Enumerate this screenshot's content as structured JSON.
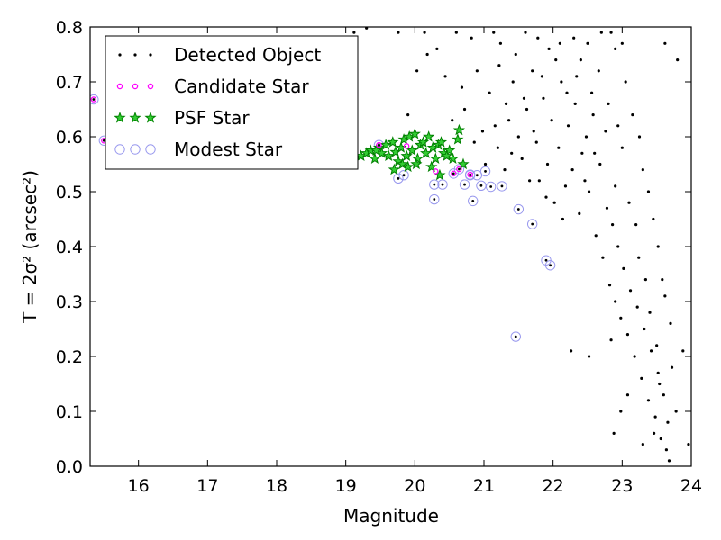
{
  "chart_data": {
    "type": "scatter",
    "xlabel": "Magnitude",
    "ylabel": "T = 2σ² (arcsec²)",
    "xlim": [
      15.3,
      24.0
    ],
    "ylim": [
      0.0,
      0.8
    ],
    "xticks": [
      16,
      17,
      18,
      19,
      20,
      21,
      22,
      23,
      24
    ],
    "yticks": [
      0.0,
      0.1,
      0.2,
      0.3,
      0.4,
      0.5,
      0.6,
      0.7,
      0.8
    ],
    "legend_position": "top-left",
    "grid": false,
    "series": [
      {
        "name": "Detected Object",
        "color": "#000000",
        "marker": "dot",
        "points": [
          [
            19.12,
            0.79
          ],
          [
            19.3,
            0.798
          ],
          [
            19.76,
            0.79
          ],
          [
            19.9,
            0.64
          ],
          [
            20.03,
            0.72
          ],
          [
            20.14,
            0.79
          ],
          [
            20.18,
            0.75
          ],
          [
            20.32,
            0.76
          ],
          [
            20.44,
            0.71
          ],
          [
            20.6,
            0.79
          ],
          [
            20.68,
            0.69
          ],
          [
            20.82,
            0.78
          ],
          [
            20.9,
            0.72
          ],
          [
            20.98,
            0.61
          ],
          [
            21.08,
            0.68
          ],
          [
            21.16,
            0.62
          ],
          [
            21.22,
            0.73
          ],
          [
            21.32,
            0.66
          ],
          [
            21.42,
            0.7
          ],
          [
            21.5,
            0.6
          ],
          [
            21.55,
            0.56
          ],
          [
            21.62,
            0.65
          ],
          [
            21.7,
            0.72
          ],
          [
            21.76,
            0.59
          ],
          [
            21.8,
            0.52
          ],
          [
            21.86,
            0.67
          ],
          [
            21.92,
            0.55
          ],
          [
            21.98,
            0.63
          ],
          [
            22.02,
            0.48
          ],
          [
            22.08,
            0.58
          ],
          [
            22.12,
            0.7
          ],
          [
            22.18,
            0.51
          ],
          [
            22.22,
            0.62
          ],
          [
            22.28,
            0.54
          ],
          [
            22.32,
            0.66
          ],
          [
            22.38,
            0.46
          ],
          [
            22.42,
            0.57
          ],
          [
            22.48,
            0.6
          ],
          [
            22.52,
            0.5
          ],
          [
            22.58,
            0.64
          ],
          [
            22.62,
            0.42
          ],
          [
            22.68,
            0.55
          ],
          [
            22.72,
            0.38
          ],
          [
            22.78,
            0.47
          ],
          [
            22.82,
            0.33
          ],
          [
            22.86,
            0.44
          ],
          [
            22.9,
            0.3
          ],
          [
            22.94,
            0.4
          ],
          [
            22.98,
            0.27
          ],
          [
            23.02,
            0.36
          ],
          [
            23.08,
            0.24
          ],
          [
            23.12,
            0.32
          ],
          [
            23.18,
            0.2
          ],
          [
            23.22,
            0.29
          ],
          [
            23.28,
            0.16
          ],
          [
            23.32,
            0.25
          ],
          [
            23.38,
            0.12
          ],
          [
            23.42,
            0.21
          ],
          [
            23.48,
            0.09
          ],
          [
            23.52,
            0.17
          ],
          [
            23.56,
            0.05
          ],
          [
            23.6,
            0.13
          ],
          [
            23.64,
            0.03
          ],
          [
            23.62,
            0.77
          ],
          [
            23.8,
            0.74
          ],
          [
            23.88,
            0.21
          ],
          [
            23.96,
            0.04
          ],
          [
            21.14,
            0.79
          ],
          [
            21.6,
            0.79
          ],
          [
            22.1,
            0.77
          ],
          [
            22.4,
            0.74
          ],
          [
            22.7,
            0.79
          ],
          [
            22.9,
            0.76
          ],
          [
            23.05,
            0.7
          ],
          [
            23.15,
            0.64
          ],
          [
            23.25,
            0.6
          ],
          [
            23.3,
            0.54
          ],
          [
            23.38,
            0.5
          ],
          [
            23.45,
            0.45
          ],
          [
            23.52,
            0.4
          ],
          [
            23.58,
            0.34
          ],
          [
            23.62,
            0.31
          ],
          [
            23.7,
            0.26
          ],
          [
            23.72,
            0.18
          ],
          [
            23.78,
            0.1
          ],
          [
            22.26,
            0.21
          ],
          [
            22.52,
            0.2
          ],
          [
            22.84,
            0.23
          ],
          [
            22.88,
            0.06
          ],
          [
            22.98,
            0.1
          ],
          [
            23.08,
            0.13
          ],
          [
            23.3,
            0.04
          ],
          [
            23.46,
            0.06
          ],
          [
            21.4,
            0.57
          ],
          [
            21.3,
            0.54
          ],
          [
            21.66,
            0.52
          ],
          [
            21.9,
            0.49
          ],
          [
            22.14,
            0.45
          ],
          [
            22.46,
            0.52
          ],
          [
            22.6,
            0.57
          ],
          [
            22.76,
            0.61
          ],
          [
            22.9,
            0.51
          ],
          [
            20.54,
            0.63
          ],
          [
            20.72,
            0.65
          ],
          [
            20.86,
            0.59
          ],
          [
            21.02,
            0.55
          ],
          [
            21.2,
            0.58
          ],
          [
            21.36,
            0.63
          ],
          [
            21.58,
            0.67
          ],
          [
            21.72,
            0.61
          ],
          [
            21.84,
            0.71
          ],
          [
            22.04,
            0.74
          ],
          [
            22.2,
            0.68
          ],
          [
            22.34,
            0.71
          ],
          [
            22.56,
            0.68
          ],
          [
            22.66,
            0.72
          ],
          [
            22.8,
            0.66
          ],
          [
            22.94,
            0.62
          ],
          [
            23.0,
            0.58
          ],
          [
            23.1,
            0.48
          ],
          [
            23.2,
            0.44
          ],
          [
            23.24,
            0.38
          ],
          [
            23.34,
            0.34
          ],
          [
            23.4,
            0.28
          ],
          [
            23.5,
            0.22
          ],
          [
            23.54,
            0.15
          ],
          [
            23.66,
            0.08
          ],
          [
            23.68,
            0.01
          ],
          [
            21.24,
            0.77
          ],
          [
            21.46,
            0.75
          ],
          [
            21.78,
            0.78
          ],
          [
            21.94,
            0.76
          ],
          [
            22.3,
            0.78
          ],
          [
            22.5,
            0.77
          ],
          [
            22.84,
            0.79
          ],
          [
            23.0,
            0.77
          ]
        ]
      },
      {
        "name": "Candidate Star",
        "color": "#ff00ff",
        "marker": "small-circle",
        "points": [
          [
            15.35,
            0.668
          ],
          [
            15.5,
            0.593
          ],
          [
            19.48,
            0.585
          ],
          [
            19.88,
            0.583
          ],
          [
            20.3,
            0.537
          ],
          [
            20.56,
            0.533
          ],
          [
            20.64,
            0.541
          ],
          [
            20.8,
            0.531
          ]
        ]
      },
      {
        "name": "PSF Star",
        "color": "#008000",
        "marker": "star",
        "points": [
          [
            19.12,
            0.56
          ],
          [
            19.22,
            0.565
          ],
          [
            19.3,
            0.57
          ],
          [
            19.36,
            0.575
          ],
          [
            19.42,
            0.56
          ],
          [
            19.48,
            0.58
          ],
          [
            19.52,
            0.57
          ],
          [
            19.58,
            0.585
          ],
          [
            19.62,
            0.565
          ],
          [
            19.68,
            0.59
          ],
          [
            19.72,
            0.572
          ],
          [
            19.76,
            0.555
          ],
          [
            19.8,
            0.58
          ],
          [
            19.84,
            0.595
          ],
          [
            19.88,
            0.565
          ],
          [
            19.92,
            0.6
          ],
          [
            19.96,
            0.575
          ],
          [
            20.0,
            0.605
          ],
          [
            20.04,
            0.56
          ],
          [
            20.08,
            0.585
          ],
          [
            20.12,
            0.59
          ],
          [
            20.16,
            0.57
          ],
          [
            20.2,
            0.6
          ],
          [
            20.26,
            0.58
          ],
          [
            20.3,
            0.56
          ],
          [
            20.34,
            0.585
          ],
          [
            20.38,
            0.59
          ],
          [
            20.42,
            0.57
          ],
          [
            20.5,
            0.575
          ],
          [
            20.55,
            0.56
          ],
          [
            20.62,
            0.595
          ],
          [
            20.64,
            0.612
          ],
          [
            19.7,
            0.54
          ],
          [
            19.82,
            0.55
          ],
          [
            19.9,
            0.545
          ],
          [
            20.02,
            0.55
          ],
          [
            20.24,
            0.545
          ],
          [
            20.36,
            0.53
          ],
          [
            20.46,
            0.565
          ],
          [
            19.44,
            0.575
          ],
          [
            20.7,
            0.55
          ]
        ]
      },
      {
        "name": "Modest Star",
        "color": "#9999ee",
        "marker": "open-circle",
        "points": [
          [
            15.35,
            0.668
          ],
          [
            15.5,
            0.593
          ],
          [
            19.48,
            0.585
          ],
          [
            19.76,
            0.524
          ],
          [
            19.84,
            0.53
          ],
          [
            20.28,
            0.513
          ],
          [
            20.28,
            0.486
          ],
          [
            20.4,
            0.513
          ],
          [
            20.72,
            0.513
          ],
          [
            20.8,
            0.53
          ],
          [
            20.84,
            0.483
          ],
          [
            20.9,
            0.53
          ],
          [
            20.96,
            0.511
          ],
          [
            21.02,
            0.537
          ],
          [
            21.1,
            0.509
          ],
          [
            21.26,
            0.51
          ],
          [
            21.5,
            0.468
          ],
          [
            21.7,
            0.441
          ],
          [
            21.9,
            0.375
          ],
          [
            21.96,
            0.366
          ],
          [
            21.46,
            0.236
          ],
          [
            20.56,
            0.533
          ],
          [
            20.64,
            0.541
          ],
          [
            20.8,
            0.531
          ]
        ]
      }
    ]
  }
}
